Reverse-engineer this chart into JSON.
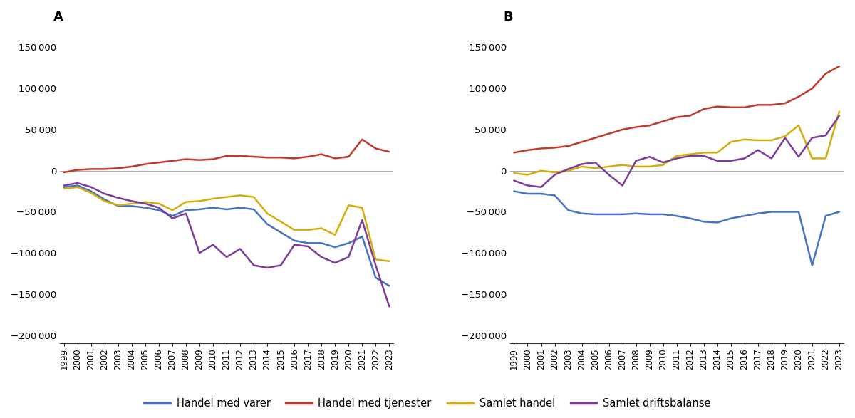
{
  "years": [
    1999,
    2000,
    2001,
    2002,
    2003,
    2004,
    2005,
    2006,
    2007,
    2008,
    2009,
    2010,
    2011,
    2012,
    2013,
    2014,
    2015,
    2016,
    2017,
    2018,
    2019,
    2020,
    2021,
    2022,
    2023
  ],
  "A": {
    "varer": [
      -20000,
      -18000,
      -25000,
      -35000,
      -43000,
      -43000,
      -45000,
      -48000,
      -55000,
      -48000,
      -47000,
      -45000,
      -47000,
      -45000,
      -47000,
      -65000,
      -75000,
      -85000,
      -88000,
      -88000,
      -93000,
      -88000,
      -80000,
      -130000,
      -140000
    ],
    "tjenester": [
      -2000,
      1000,
      2000,
      2000,
      3000,
      5000,
      8000,
      10000,
      12000,
      14000,
      13000,
      14000,
      18000,
      18000,
      17000,
      16000,
      16000,
      15000,
      17000,
      20000,
      15000,
      17000,
      38000,
      27000,
      23000
    ],
    "samlet_handel": [
      -22000,
      -20000,
      -27000,
      -37000,
      -42000,
      -40000,
      -38000,
      -40000,
      -48000,
      -38000,
      -37000,
      -34000,
      -32000,
      -30000,
      -32000,
      -52000,
      -62000,
      -72000,
      -72000,
      -70000,
      -78000,
      -42000,
      -45000,
      -108000,
      -110000
    ],
    "driftsbalanse": [
      -18000,
      -15000,
      -20000,
      -28000,
      -33000,
      -37000,
      -40000,
      -45000,
      -58000,
      -52000,
      -100000,
      -90000,
      -105000,
      -95000,
      -115000,
      -118000,
      -115000,
      -90000,
      -92000,
      -105000,
      -112000,
      -105000,
      -60000,
      -115000,
      -165000
    ]
  },
  "B": {
    "varer": [
      -25000,
      -28000,
      -28000,
      -30000,
      -48000,
      -52000,
      -53000,
      -53000,
      -53000,
      -52000,
      -53000,
      -53000,
      -55000,
      -58000,
      -62000,
      -63000,
      -58000,
      -55000,
      -52000,
      -50000,
      -50000,
      -50000,
      -115000,
      -55000,
      -50000
    ],
    "tjenester": [
      22000,
      25000,
      27000,
      28000,
      30000,
      35000,
      40000,
      45000,
      50000,
      53000,
      55000,
      60000,
      65000,
      67000,
      75000,
      78000,
      77000,
      77000,
      80000,
      80000,
      82000,
      90000,
      100000,
      118000,
      127000
    ],
    "samlet_handel": [
      -3000,
      -5000,
      0,
      -2000,
      0,
      5000,
      3000,
      5000,
      7000,
      5000,
      5000,
      7000,
      18000,
      20000,
      22000,
      22000,
      35000,
      38000,
      37000,
      37000,
      42000,
      55000,
      15000,
      15000,
      72000
    ],
    "driftsbalanse": [
      -12000,
      -18000,
      -20000,
      -5000,
      2000,
      8000,
      10000,
      -5000,
      -18000,
      12000,
      17000,
      10000,
      15000,
      18000,
      18000,
      12000,
      12000,
      15000,
      25000,
      15000,
      40000,
      17000,
      40000,
      43000,
      67000
    ]
  },
  "colors": {
    "varer": "#4472c4",
    "tjenester": "#c0392b",
    "samlet_handel": "#d4ac0d",
    "driftsbalanse": "#7d3c98"
  },
  "line_width": 1.8,
  "ylim": [
    -210000,
    175000
  ],
  "yticks": [
    -200000,
    -150000,
    -100000,
    -50000,
    0,
    50000,
    100000,
    150000
  ],
  "legend_labels": [
    "Handel med varer",
    "Handel med tjenester",
    "Samlet handel",
    "Samlet driftsbalanse"
  ],
  "panel_labels": [
    "A",
    "B"
  ]
}
